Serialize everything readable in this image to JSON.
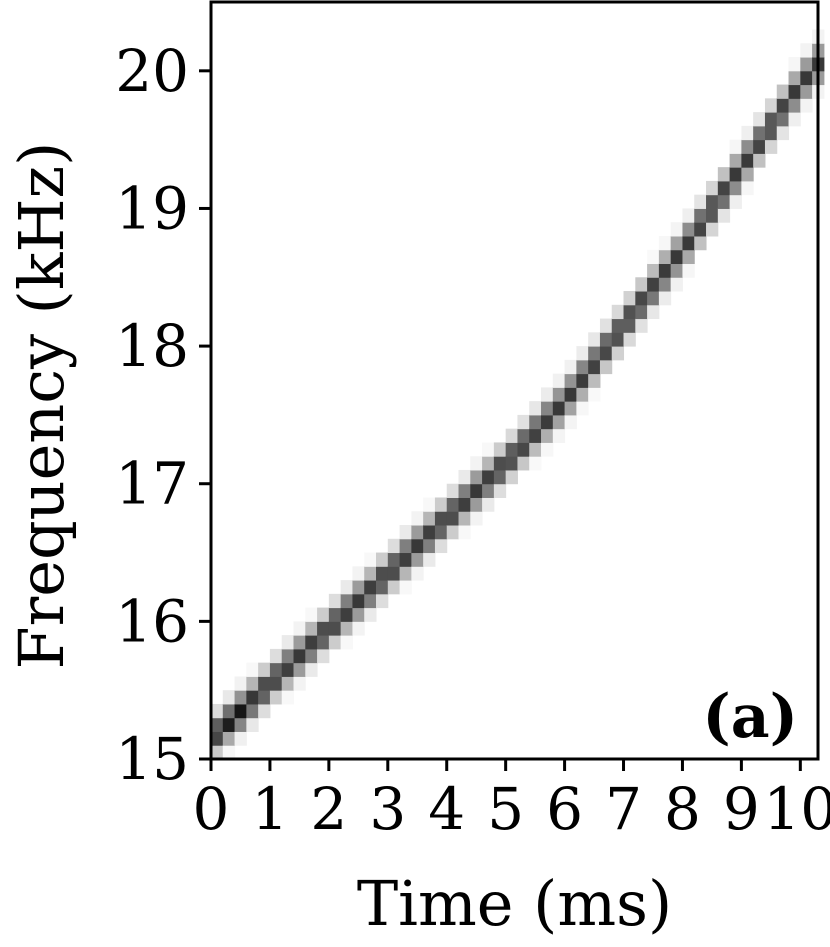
{
  "chart_data": {
    "type": "heatmap",
    "title": "",
    "panel_label": "(a)",
    "xlabel": "Time (ms)",
    "ylabel": "Frequency (kHz)",
    "xlim": [
      0,
      10.3
    ],
    "ylim": [
      15,
      20.5
    ],
    "xticks": [
      0,
      1,
      2,
      3,
      4,
      5,
      6,
      7,
      8,
      9,
      10
    ],
    "xtick_labels": [
      "0",
      "1",
      "2",
      "3",
      "4",
      "5",
      "6",
      "7",
      "8",
      "9",
      "10"
    ],
    "yticks": [
      15,
      16,
      17,
      18,
      19,
      20
    ],
    "ytick_labels": [
      "15",
      "16",
      "17",
      "18",
      "19",
      "20"
    ],
    "grid": false,
    "colormap": "grayscale (white = low, black = high)",
    "series": [
      {
        "x": [
          0.0,
          1.0,
          2.0,
          3.0,
          4.0,
          5.0,
          6.0,
          7.0,
          8.0,
          9.0,
          10.0,
          10.3
        ],
        "y": [
          15.15,
          15.55,
          15.95,
          16.35,
          16.75,
          17.15,
          17.6,
          18.15,
          18.7,
          19.3,
          19.9,
          20.05
        ]
      }
    ],
    "peak": {
      "x": 0.45,
      "y": 15.2
    }
  }
}
